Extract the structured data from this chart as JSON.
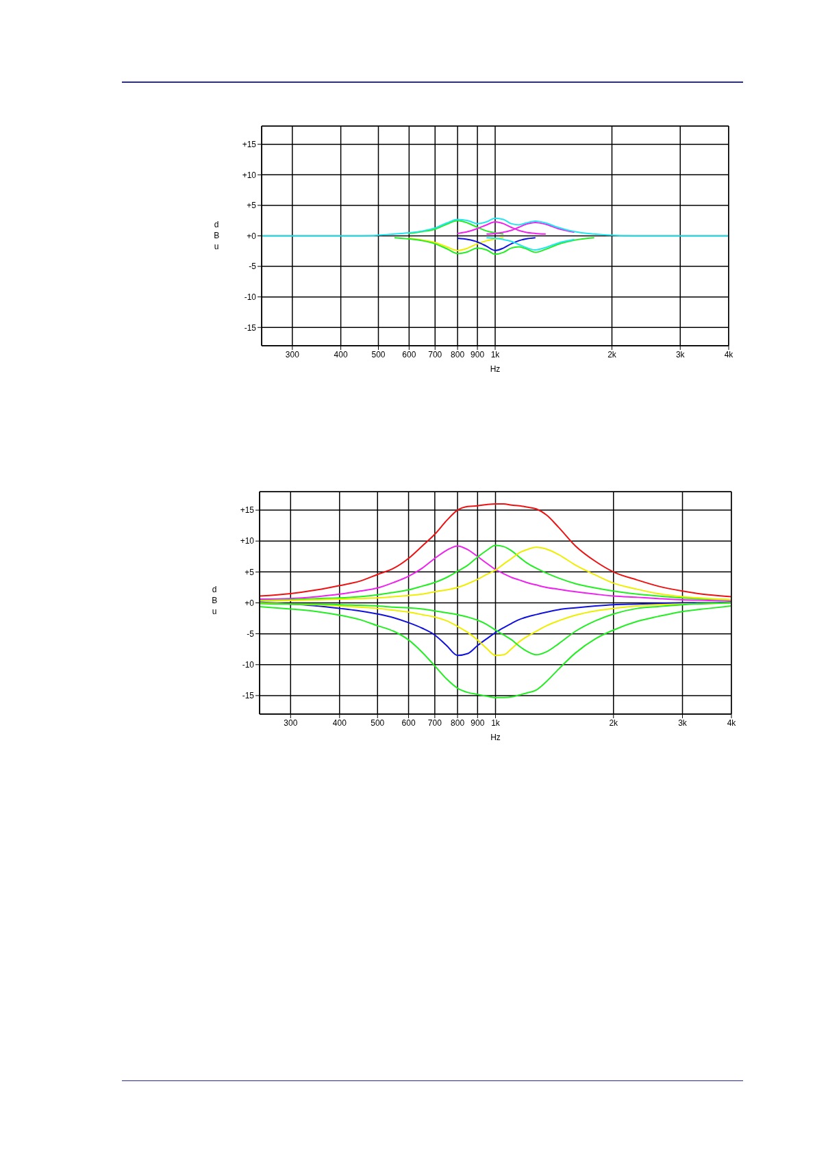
{
  "chart_data": [
    {
      "type": "line",
      "xlabel": "Hz",
      "ylabel": "dBu",
      "log": "x",
      "grid": true,
      "line_style": "solid",
      "xlim": [
        250,
        4000
      ],
      "ylim": [
        -18,
        18
      ],
      "xticks": [
        300,
        400,
        500,
        600,
        700,
        800,
        900,
        {
          "value": 1000,
          "label": "1k"
        },
        {
          "value": 2000,
          "label": "2k"
        },
        {
          "value": 3000,
          "label": "3k"
        },
        {
          "value": 4000,
          "label": "4k"
        }
      ],
      "yticks": [
        {
          "value": 15,
          "label": "+15"
        },
        {
          "value": 10,
          "label": "+10"
        },
        {
          "value": 5,
          "label": "+5"
        },
        {
          "value": 0,
          "label": "+0"
        },
        -5,
        -10,
        -15
      ],
      "x": [
        250,
        300,
        350,
        400,
        450,
        500,
        550,
        600,
        650,
        700,
        750,
        800,
        850,
        900,
        950,
        1000,
        1050,
        1100,
        1150,
        1200,
        1270,
        1350,
        1450,
        1600,
        1800,
        2000,
        2300,
        2600,
        3000,
        3500,
        4000
      ],
      "series": [
        {
          "color": "#22ee22",
          "values": [
            null,
            null,
            null,
            null,
            null,
            null,
            null,
            0.4,
            0.7,
            1.1,
            1.9,
            2.5,
            2.1,
            1.4,
            0.8,
            0.5,
            0.3,
            null,
            null,
            null,
            null,
            null,
            null,
            null,
            null,
            null,
            null,
            null,
            null,
            null,
            null
          ]
        },
        {
          "color": "#ee22ee",
          "values": [
            null,
            null,
            null,
            null,
            null,
            null,
            null,
            null,
            null,
            null,
            null,
            0.4,
            0.7,
            1.2,
            1.8,
            2.3,
            2.0,
            1.4,
            0.9,
            0.6,
            0.4,
            0.3,
            null,
            null,
            null,
            null,
            null,
            null,
            null,
            null,
            null
          ]
        },
        {
          "color": "#ee22ee",
          "values": [
            null,
            null,
            null,
            null,
            null,
            null,
            null,
            null,
            null,
            null,
            null,
            null,
            null,
            null,
            0.3,
            0.4,
            0.6,
            0.9,
            1.4,
            1.9,
            2.2,
            1.9,
            1.2,
            0.6,
            null,
            null,
            null,
            null,
            null,
            null,
            null
          ]
        },
        {
          "color": "#eeee00",
          "values": [
            null,
            null,
            null,
            null,
            null,
            null,
            null,
            -0.4,
            -0.7,
            -1.1,
            -1.8,
            -2.4,
            -2.0,
            -1.3,
            -0.8,
            -0.5,
            -0.3,
            null,
            null,
            null,
            null,
            null,
            null,
            null,
            null,
            null,
            null,
            null,
            null,
            null,
            null
          ]
        },
        {
          "color": "#1111dd",
          "values": [
            null,
            null,
            null,
            null,
            null,
            null,
            null,
            null,
            null,
            null,
            null,
            -0.4,
            -0.6,
            -1.0,
            -1.7,
            -2.4,
            -2.0,
            -1.3,
            -0.8,
            -0.5,
            -0.3,
            null,
            null,
            null,
            null,
            null,
            null,
            null,
            null,
            null,
            null
          ]
        },
        {
          "color": "#22ee22",
          "values": [
            null,
            null,
            null,
            null,
            null,
            null,
            -0.3,
            -0.5,
            -0.8,
            -1.3,
            -2.1,
            -2.9,
            -2.6,
            -2.0,
            -2.3,
            -3.0,
            -2.7,
            -2.0,
            -1.8,
            -2.1,
            -2.7,
            -2.2,
            -1.4,
            -0.7,
            -0.3,
            null,
            null,
            null,
            null,
            null,
            null
          ]
        },
        {
          "color": "#22e5ee",
          "values": [
            null,
            null,
            null,
            null,
            null,
            null,
            null,
            null,
            null,
            null,
            null,
            null,
            null,
            null,
            -0.3,
            -0.4,
            -0.6,
            -0.9,
            -1.4,
            -1.9,
            -2.3,
            -1.9,
            -1.2,
            -0.6,
            null,
            null,
            null,
            null,
            null,
            null,
            null
          ]
        },
        {
          "color": "#22e5ee",
          "values": [
            0,
            0,
            0,
            0,
            0,
            0.1,
            0.3,
            0.5,
            0.8,
            1.3,
            2.1,
            2.7,
            2.5,
            2.0,
            2.3,
            2.9,
            2.7,
            2.0,
            1.8,
            2.1,
            2.4,
            2.1,
            1.4,
            0.7,
            0.3,
            0.1,
            0,
            0,
            0,
            0,
            0
          ]
        }
      ]
    },
    {
      "type": "line",
      "xlabel": "Hz",
      "ylabel": "dBu",
      "log": "x",
      "grid": true,
      "line_style": "solid",
      "xlim": [
        250,
        4000
      ],
      "ylim": [
        -18,
        18
      ],
      "xticks": [
        300,
        400,
        500,
        600,
        700,
        800,
        900,
        {
          "value": 1000,
          "label": "1k"
        },
        {
          "value": 2000,
          "label": "2k"
        },
        {
          "value": 3000,
          "label": "3k"
        },
        {
          "value": 4000,
          "label": "4k"
        }
      ],
      "yticks": [
        {
          "value": 15,
          "label": "+15"
        },
        {
          "value": 10,
          "label": "+10"
        },
        {
          "value": 5,
          "label": "+5"
        },
        {
          "value": 0,
          "label": "+0"
        },
        -5,
        -10,
        -15
      ],
      "x": [
        250,
        300,
        350,
        400,
        450,
        500,
        550,
        600,
        650,
        700,
        750,
        800,
        850,
        900,
        950,
        1000,
        1050,
        1100,
        1150,
        1200,
        1270,
        1350,
        1450,
        1600,
        1800,
        2000,
        2300,
        2600,
        3000,
        3500,
        4000
      ],
      "series": [
        {
          "color": "#ee1111",
          "values": [
            1.1,
            1.5,
            2.1,
            2.8,
            3.5,
            4.6,
            5.6,
            7.2,
            9.2,
            11.1,
            13.3,
            15.0,
            15.6,
            15.7,
            15.9,
            16.0,
            16.0,
            15.8,
            15.7,
            15.5,
            15.2,
            14.2,
            12.2,
            9.2,
            6.7,
            5.0,
            3.7,
            2.7,
            1.9,
            1.3,
            1.0
          ]
        },
        {
          "color": "#ee22ee",
          "values": [
            0.6,
            0.7,
            1.0,
            1.4,
            1.9,
            2.4,
            3.3,
            4.3,
            5.6,
            7.2,
            8.5,
            9.2,
            8.6,
            7.5,
            6.4,
            5.4,
            4.7,
            4.1,
            3.7,
            3.3,
            2.9,
            2.5,
            2.2,
            1.8,
            1.4,
            1.1,
            0.9,
            0.7,
            0.5,
            0.4,
            0.3
          ]
        },
        {
          "color": "#22ee22",
          "values": [
            0.4,
            0.5,
            0.7,
            0.8,
            1.0,
            1.3,
            1.7,
            2.1,
            2.7,
            3.3,
            4.1,
            5.1,
            6.1,
            7.4,
            8.5,
            9.3,
            9.1,
            8.4,
            7.4,
            6.5,
            5.6,
            4.8,
            4.0,
            3.1,
            2.4,
            1.9,
            1.4,
            1.1,
            0.8,
            0.6,
            0.5
          ]
        },
        {
          "color": "#eeee00",
          "values": [
            0.3,
            0.4,
            0.5,
            0.6,
            0.7,
            0.8,
            1.0,
            1.2,
            1.4,
            1.8,
            2.1,
            2.5,
            3.1,
            3.8,
            4.6,
            5.3,
            6.3,
            7.2,
            8.1,
            8.6,
            9.0,
            8.7,
            7.8,
            6.1,
            4.5,
            3.2,
            2.2,
            1.5,
            1.0,
            0.7,
            0.5
          ]
        },
        {
          "color": "#1111dd",
          "values": [
            0.1,
            -0.2,
            -0.5,
            -0.9,
            -1.3,
            -1.8,
            -2.4,
            -3.2,
            -4.1,
            -5.2,
            -6.9,
            -8.5,
            -8.2,
            -6.9,
            -5.8,
            -4.8,
            -4.0,
            -3.3,
            -2.7,
            -2.3,
            -1.9,
            -1.5,
            -1.1,
            -0.8,
            -0.5,
            -0.3,
            -0.2,
            -0.1,
            0,
            0,
            0.1
          ]
        },
        {
          "color": "#eeee00",
          "values": [
            0,
            -0.2,
            -0.3,
            -0.5,
            -0.7,
            -0.9,
            -1.2,
            -1.5,
            -1.9,
            -2.3,
            -2.9,
            -3.8,
            -4.8,
            -6.0,
            -7.4,
            -8.5,
            -8.4,
            -7.4,
            -6.3,
            -5.5,
            -4.6,
            -3.7,
            -2.9,
            -2.0,
            -1.3,
            -0.9,
            -0.5,
            -0.3,
            -0.2,
            -0.1,
            0
          ]
        },
        {
          "color": "#22ee22",
          "values": [
            -0.1,
            -0.2,
            -0.2,
            -0.3,
            -0.4,
            -0.5,
            -0.7,
            -0.8,
            -1.0,
            -1.3,
            -1.6,
            -1.9,
            -2.3,
            -2.8,
            -3.5,
            -4.4,
            -5.2,
            -6.0,
            -7.0,
            -7.8,
            -8.4,
            -7.9,
            -6.6,
            -4.6,
            -2.9,
            -1.8,
            -0.9,
            -0.6,
            -0.3,
            -0.1,
            0
          ]
        },
        {
          "color": "#22ee22",
          "values": [
            -0.6,
            -1.0,
            -1.4,
            -2.0,
            -2.7,
            -3.7,
            -4.6,
            -6.0,
            -8.0,
            -10.2,
            -12.3,
            -13.8,
            -14.5,
            -14.8,
            -15.1,
            -15.3,
            -15.3,
            -15.2,
            -14.9,
            -14.6,
            -14.1,
            -12.7,
            -10.7,
            -8.1,
            -5.8,
            -4.4,
            -3.0,
            -2.2,
            -1.4,
            -0.9,
            -0.5
          ]
        }
      ]
    }
  ]
}
